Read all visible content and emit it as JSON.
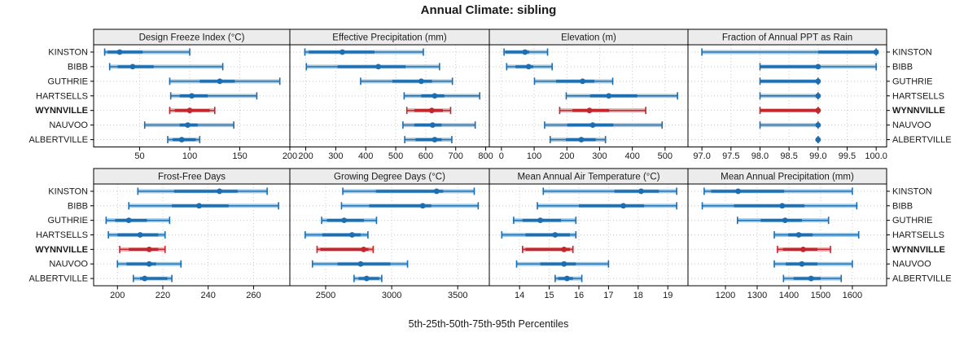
{
  "title": "Annual Climate: sibling",
  "caption": "5th-25th-50th-75th-95th Percentiles",
  "series": [
    "KINSTON",
    "BIBB",
    "GUTHRIE",
    "HARTSELLS",
    "WYNNVILLE",
    "NAUVOO",
    "ALBERTVILLE"
  ],
  "highlighted_series": "WYNNVILLE",
  "colors": {
    "normal_dark": "#1C6EB1",
    "normal_light": "#A6C9E2",
    "highlight_dark": "#C1272D",
    "highlight_light": "#E7A6A8",
    "strip_bg": "#ECECEC",
    "panel_border": "#000000",
    "grid": "#C9C9C9",
    "text": "#1A1A1A"
  },
  "chart_data": {
    "type": "scatter",
    "subtype": "percentile interval plot (lattice segplot), 5th-25th-50th-75th-95th",
    "legend_position": "none",
    "grid": "dotted",
    "percentiles": [
      "q05",
      "q25",
      "q50",
      "q75",
      "q95"
    ],
    "categories": [
      "KINSTON",
      "BIBB",
      "GUTHRIE",
      "HARTSELLS",
      "WYNNVILLE",
      "NAUVOO",
      "ALBERTVILLE"
    ],
    "panels": [
      {
        "title": "Design Freeze Index (°C)",
        "grid_col": 0,
        "grid_row": 0,
        "axis_range": [
          4,
          200
        ],
        "ticks": [
          50,
          100,
          150,
          200
        ],
        "tick_labels": [
          "50",
          "100",
          "150",
          "200"
        ],
        "values": [
          [
            15,
            18,
            30,
            53,
            100
          ],
          [
            20,
            28,
            43,
            64,
            133
          ],
          [
            80,
            110,
            130,
            145,
            190
          ],
          [
            81,
            90,
            102,
            118,
            167
          ],
          [
            80,
            85,
            100,
            120,
            125
          ],
          [
            55,
            90,
            98,
            108,
            144
          ],
          [
            78,
            83,
            92,
            106,
            110
          ]
        ]
      },
      {
        "title": "Effective Precipitation (mm)",
        "grid_col": 1,
        "grid_row": 0,
        "axis_range": [
          147,
          812
        ],
        "ticks": [
          200,
          300,
          400,
          500,
          600,
          700,
          800
        ],
        "tick_labels": [
          "200",
          "300",
          "400",
          "500",
          "600",
          "700",
          "800"
        ],
        "values": [
          [
            197,
            210,
            322,
            429,
            592
          ],
          [
            202,
            306,
            442,
            533,
            646
          ],
          [
            383,
            489,
            585,
            621,
            689
          ],
          [
            528,
            585,
            630,
            662,
            780
          ],
          [
            537,
            562,
            620,
            657,
            683
          ],
          [
            524,
            562,
            623,
            653,
            765
          ],
          [
            530,
            566,
            630,
            653,
            687
          ]
        ]
      },
      {
        "title": "Elevation (m)",
        "grid_col": 2,
        "grid_row": 0,
        "axis_range": [
          -37,
          570
        ],
        "ticks": [
          0,
          100,
          200,
          300,
          400,
          500
        ],
        "tick_labels": [
          "0",
          "100",
          "200",
          "300",
          "400",
          "500"
        ],
        "values": [
          [
            8,
            12,
            72,
            85,
            141
          ],
          [
            16,
            43,
            83,
            97,
            155
          ],
          [
            101,
            167,
            248,
            284,
            340
          ],
          [
            198,
            271,
            328,
            415,
            538
          ],
          [
            178,
            217,
            269,
            329,
            441
          ],
          [
            132,
            201,
            279,
            342,
            491
          ],
          [
            149,
            197,
            244,
            288,
            318
          ]
        ]
      },
      {
        "title": "Fraction of Annual PPT as Rain",
        "grid_col": 3,
        "grid_row": 0,
        "axis_range": [
          96.76,
          100.18
        ],
        "ticks": [
          97.0,
          97.5,
          98.0,
          98.5,
          99.0,
          99.5,
          100.0
        ],
        "tick_labels": [
          "97.0",
          "97.5",
          "98.0",
          "98.5",
          "99.0",
          "99.5",
          "100.0"
        ],
        "values": [
          [
            97,
            99,
            100,
            100,
            100
          ],
          [
            98,
            98,
            99,
            99,
            100
          ],
          [
            98,
            98,
            99,
            99,
            99
          ],
          [
            98,
            99,
            99,
            99,
            99
          ],
          [
            98,
            98,
            99,
            99,
            99
          ],
          [
            98,
            99,
            99,
            99,
            99
          ],
          [
            99,
            99,
            99,
            99,
            99
          ]
        ]
      },
      {
        "title": "Frost-Free Days",
        "grid_col": 0,
        "grid_row": 1,
        "axis_range": [
          189.5,
          276
        ],
        "ticks": [
          200,
          220,
          240,
          260
        ],
        "tick_labels": [
          "200",
          "220",
          "240",
          "260"
        ],
        "values": [
          [
            209,
            225,
            245,
            253,
            266
          ],
          [
            205,
            224,
            236,
            249,
            271
          ],
          [
            195,
            199,
            205,
            213,
            223
          ],
          [
            196,
            200,
            210,
            218,
            221
          ],
          [
            201,
            205,
            214,
            218,
            221
          ],
          [
            200,
            204,
            214,
            217,
            228
          ],
          [
            207,
            210,
            212,
            222,
            224
          ]
        ]
      },
      {
        "title": "Growing Degree Days (°C)",
        "grid_col": 1,
        "grid_row": 1,
        "axis_range": [
          2229,
          3739
        ],
        "ticks": [
          2500,
          3000,
          3500
        ],
        "tick_labels": [
          "2500",
          "3000",
          "3500"
        ],
        "values": [
          [
            2630,
            2880,
            3340,
            3390,
            3625
          ],
          [
            2620,
            2830,
            3235,
            3300,
            3655
          ],
          [
            2470,
            2510,
            2640,
            2790,
            2885
          ],
          [
            2345,
            2475,
            2700,
            2765,
            2820
          ],
          [
            2435,
            2460,
            2788,
            2825,
            2860
          ],
          [
            2400,
            2590,
            2765,
            2990,
            3120
          ],
          [
            2715,
            2750,
            2810,
            2905,
            2925
          ]
        ]
      },
      {
        "title": "Mean Annual Air Temperature (°C)",
        "grid_col": 2,
        "grid_row": 1,
        "axis_range": [
          12.98,
          19.68
        ],
        "ticks": [
          14,
          15,
          16,
          17,
          18,
          19
        ],
        "tick_labels": [
          "14",
          "15",
          "16",
          "17",
          "18",
          "19"
        ],
        "values": [
          [
            14.8,
            17.2,
            18.1,
            18.7,
            19.3
          ],
          [
            14.6,
            16.0,
            17.5,
            18.2,
            19.3
          ],
          [
            13.8,
            14.1,
            14.7,
            15.4,
            15.9
          ],
          [
            13.4,
            14.2,
            15.2,
            15.7,
            15.9
          ],
          [
            14.1,
            14.2,
            15.5,
            15.7,
            15.8
          ],
          [
            13.9,
            14.7,
            15.5,
            15.9,
            17.0
          ],
          [
            15.2,
            15.3,
            15.6,
            15.8,
            16.1
          ]
        ]
      },
      {
        "title": "Mean Annual Precipitation (mm)",
        "grid_col": 3,
        "grid_row": 1,
        "axis_range": [
          1082,
          1708
        ],
        "ticks": [
          1200,
          1300,
          1400,
          1500,
          1600
        ],
        "tick_labels": [
          "1200",
          "1300",
          "1400",
          "1500",
          "1600"
        ],
        "values": [
          [
            1133,
            1155,
            1240,
            1385,
            1600
          ],
          [
            1127,
            1227,
            1379,
            1449,
            1614
          ],
          [
            1238,
            1311,
            1388,
            1441,
            1525
          ],
          [
            1354,
            1398,
            1431,
            1475,
            1620
          ],
          [
            1364,
            1381,
            1445,
            1490,
            1531
          ],
          [
            1354,
            1390,
            1441,
            1490,
            1600
          ],
          [
            1383,
            1415,
            1470,
            1500,
            1565
          ]
        ]
      }
    ]
  }
}
